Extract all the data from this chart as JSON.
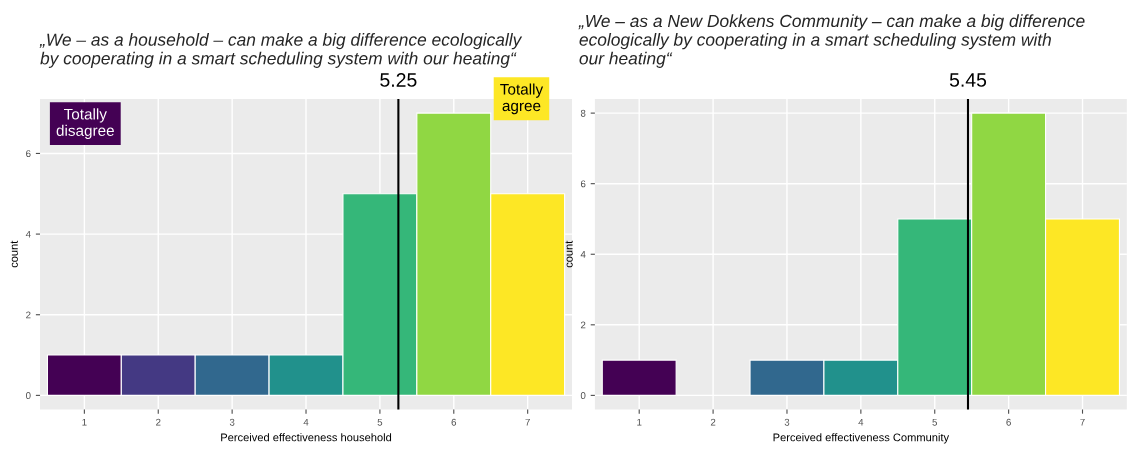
{
  "chart_data": [
    {
      "type": "bar",
      "title": "„We – as a household – can make a big difference ecologically by cooperating in a smart scheduling system with our heating“",
      "xlabel": "Perceived effectiveness household",
      "ylabel": "count",
      "x": [
        1,
        2,
        3,
        4,
        5,
        6,
        7
      ],
      "values": [
        1,
        1,
        1,
        1,
        5,
        7,
        5
      ],
      "colors": [
        "#440154",
        "#443983",
        "#31688e",
        "#21918c",
        "#35b779",
        "#90d743",
        "#fde725"
      ],
      "xlim": [
        0.4,
        7.6
      ],
      "xticks": [
        1,
        2,
        3,
        4,
        5,
        6,
        7
      ],
      "ylim": [
        -0.35,
        7.35
      ],
      "yticks": [
        0,
        2,
        4,
        6
      ],
      "ref_lines": [
        {
          "axis": "x",
          "value": 5.25,
          "label": "5.25",
          "color": "#000000"
        }
      ],
      "annotations": [
        "Totally disagree",
        "Totally agree"
      ],
      "grid": true
    },
    {
      "type": "bar",
      "title": "„We – as a New Dokkens Community – can make a big difference ecologically by cooperating in a smart scheduling system with our heating“",
      "xlabel": "Perceived effectiveness Community",
      "ylabel": "count",
      "x": [
        1,
        2,
        3,
        4,
        5,
        6,
        7
      ],
      "values": [
        1,
        0,
        1,
        1,
        5,
        8,
        5
      ],
      "colors": [
        "#440154",
        "#443983",
        "#31688e",
        "#21918c",
        "#35b779",
        "#90d743",
        "#fde725"
      ],
      "xlim": [
        0.4,
        7.6
      ],
      "xticks": [
        1,
        2,
        3,
        4,
        5,
        6,
        7
      ],
      "ylim": [
        -0.4,
        8.4
      ],
      "yticks": [
        0,
        2,
        4,
        6,
        8
      ],
      "ref_lines": [
        {
          "axis": "x",
          "value": 5.45,
          "label": "5.45",
          "color": "#000000"
        }
      ],
      "grid": true
    }
  ]
}
